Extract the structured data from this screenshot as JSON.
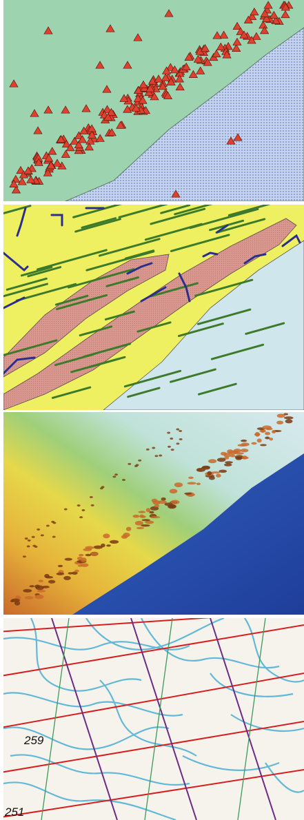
{
  "panels": [
    {
      "id": "triangle-map",
      "colors": {
        "land": "#9ed3b0",
        "sea": "#c5d3ef",
        "sea_dot": "#7e95c9",
        "marker": "#e0402e",
        "marker_edge": "#5a1a10",
        "boundary": "#5a7a66"
      }
    },
    {
      "id": "geology-map",
      "colors": {
        "background": "#eef062",
        "sea": "#cfe6ec",
        "band": "#d9988f",
        "band_edge": "#5a4a4a",
        "green_lines": "#3d7a2a",
        "blue_lines": "#2a2f8e"
      }
    },
    {
      "id": "shaded-relief",
      "colors": {
        "shallow": "#d8e9ee",
        "mid": "#e6d84a",
        "high": "#c96a2a",
        "ridge": "#7a3a10",
        "deep": "#1f3e9a"
      }
    },
    {
      "id": "contour-map",
      "colors": {
        "paper": "#f6f3ec",
        "contour": "#63b8d6",
        "red_lines": "#d61e1e",
        "purple_lines": "#6b2a86",
        "green_lines": "#3a9a5a"
      },
      "labels": [
        "259",
        "251"
      ]
    }
  ]
}
